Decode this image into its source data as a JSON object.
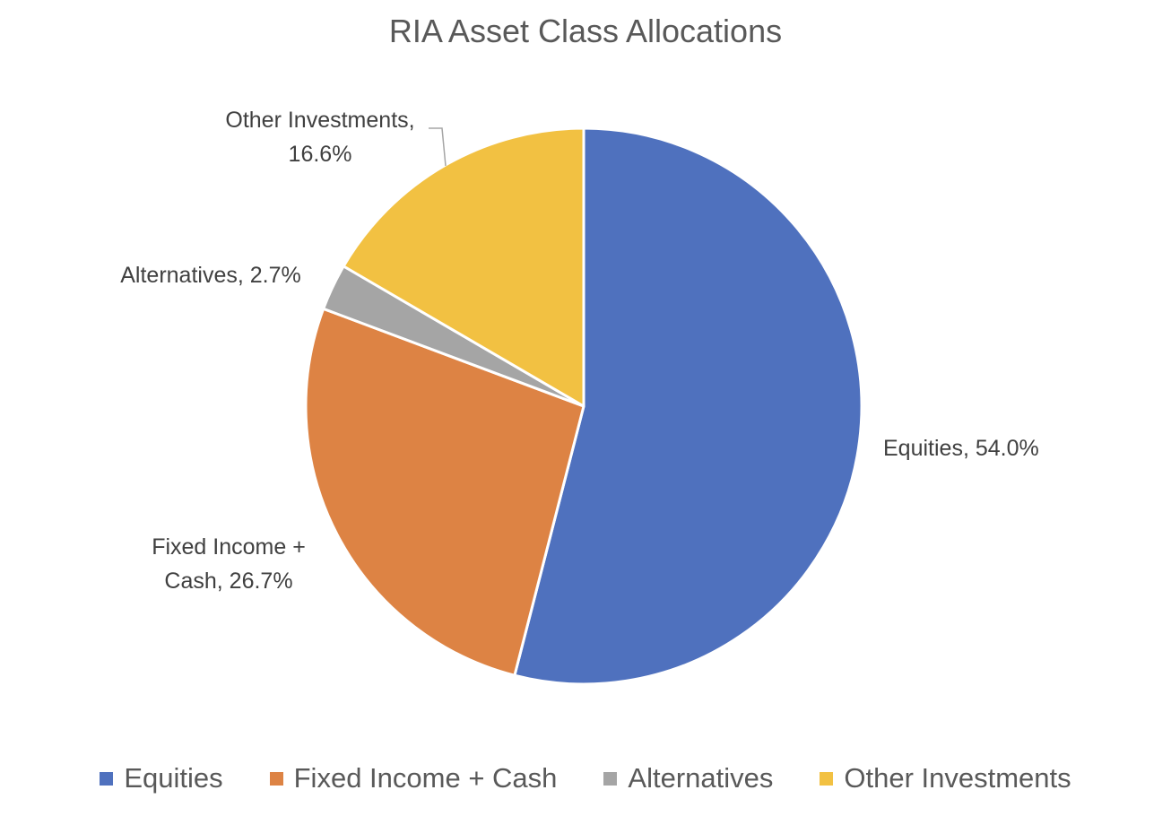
{
  "chart_data": {
    "type": "pie",
    "title": "RIA Asset Class Allocations",
    "slices": [
      {
        "name": "Equities",
        "value": 54.0,
        "label": "Equities, 54.0%",
        "color": "#4F71BE"
      },
      {
        "name": "Fixed Income + Cash",
        "value": 26.7,
        "label": "Fixed Income + Cash, 26.7%",
        "color": "#DD8344"
      },
      {
        "name": "Alternatives",
        "value": 2.7,
        "label": "Alternatives, 2.7%",
        "color": "#A5A5A5"
      },
      {
        "name": "Other Investments",
        "value": 16.6,
        "label": "Other Investments, 16.6%",
        "color": "#F2C142"
      }
    ],
    "legend_position": "bottom",
    "start_angle": "12 o'clock",
    "direction": "clockwise"
  }
}
